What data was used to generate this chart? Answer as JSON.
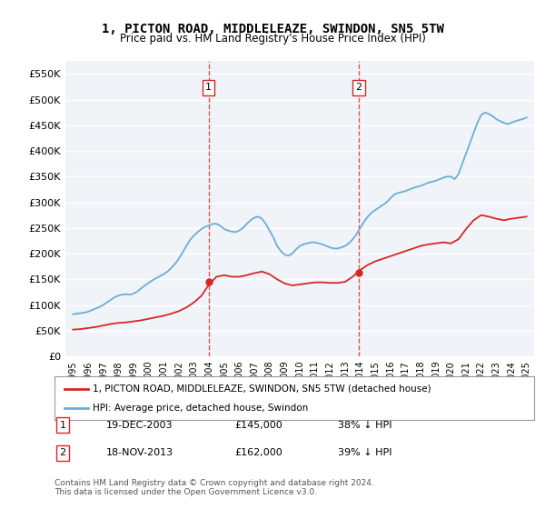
{
  "title": "1, PICTON ROAD, MIDDLELEAZE, SWINDON, SN5 5TW",
  "subtitle": "Price paid vs. HM Land Registry's House Price Index (HPI)",
  "ylabel_ticks": [
    "£0",
    "£50K",
    "£100K",
    "£150K",
    "£200K",
    "£250K",
    "£300K",
    "£350K",
    "£400K",
    "£450K",
    "£500K",
    "£550K"
  ],
  "ytick_values": [
    0,
    50000,
    100000,
    150000,
    200000,
    250000,
    300000,
    350000,
    400000,
    450000,
    500000,
    550000
  ],
  "ylim": [
    0,
    575000
  ],
  "xlim_start": 1994.5,
  "xlim_end": 2025.5,
  "hpi_color": "#6baed6",
  "price_color": "#d62728",
  "vline_color": "#d62728",
  "bg_color": "#f0f4f8",
  "plot_bg": "#f0f4f8",
  "grid_color": "#ffffff",
  "marker1_year": 2003.97,
  "marker2_year": 2013.89,
  "marker1_price": 145000,
  "marker2_price": 162000,
  "marker1_label": "1",
  "marker2_label": "2",
  "marker1_date": "19-DEC-2003",
  "marker2_date": "18-NOV-2013",
  "marker1_pct": "38% ↓ HPI",
  "marker2_pct": "39% ↓ HPI",
  "legend_line1": "1, PICTON ROAD, MIDDLELEAZE, SWINDON, SN5 5TW (detached house)",
  "legend_line2": "HPI: Average price, detached house, Swindon",
  "footer": "Contains HM Land Registry data © Crown copyright and database right 2024.\nThis data is licensed under the Open Government Licence v3.0.",
  "hpi_x": [
    1995,
    1995.25,
    1995.5,
    1995.75,
    1996,
    1996.25,
    1996.5,
    1996.75,
    1997,
    1997.25,
    1997.5,
    1997.75,
    1998,
    1998.25,
    1998.5,
    1998.75,
    1999,
    1999.25,
    1999.5,
    1999.75,
    2000,
    2000.25,
    2000.5,
    2000.75,
    2001,
    2001.25,
    2001.5,
    2001.75,
    2002,
    2002.25,
    2002.5,
    2002.75,
    2003,
    2003.25,
    2003.5,
    2003.75,
    2004,
    2004.25,
    2004.5,
    2004.75,
    2005,
    2005.25,
    2005.5,
    2005.75,
    2006,
    2006.25,
    2006.5,
    2006.75,
    2007,
    2007.25,
    2007.5,
    2007.75,
    2008,
    2008.25,
    2008.5,
    2008.75,
    2009,
    2009.25,
    2009.5,
    2009.75,
    2010,
    2010.25,
    2010.5,
    2010.75,
    2011,
    2011.25,
    2011.5,
    2011.75,
    2012,
    2012.25,
    2012.5,
    2012.75,
    2013,
    2013.25,
    2013.5,
    2013.75,
    2014,
    2014.25,
    2014.5,
    2014.75,
    2015,
    2015.25,
    2015.5,
    2015.75,
    2016,
    2016.25,
    2016.5,
    2016.75,
    2017,
    2017.25,
    2017.5,
    2017.75,
    2018,
    2018.25,
    2018.5,
    2018.75,
    2019,
    2019.25,
    2019.5,
    2019.75,
    2020,
    2020.25,
    2020.5,
    2020.75,
    2021,
    2021.25,
    2021.5,
    2021.75,
    2022,
    2022.25,
    2022.5,
    2022.75,
    2023,
    2023.25,
    2023.5,
    2023.75,
    2024,
    2024.25,
    2024.5,
    2024.75,
    2025
  ],
  "hpi_y": [
    82000,
    83000,
    84000,
    85000,
    87000,
    90000,
    93000,
    96000,
    100000,
    105000,
    110000,
    115000,
    118000,
    120000,
    121000,
    120000,
    122000,
    126000,
    132000,
    138000,
    143000,
    148000,
    152000,
    156000,
    160000,
    165000,
    172000,
    180000,
    190000,
    202000,
    215000,
    227000,
    235000,
    242000,
    248000,
    252000,
    255000,
    258000,
    258000,
    254000,
    248000,
    245000,
    243000,
    242000,
    245000,
    250000,
    258000,
    265000,
    270000,
    272000,
    268000,
    258000,
    245000,
    232000,
    215000,
    205000,
    198000,
    196000,
    200000,
    208000,
    215000,
    218000,
    220000,
    222000,
    222000,
    220000,
    218000,
    215000,
    212000,
    210000,
    210000,
    212000,
    215000,
    220000,
    228000,
    238000,
    250000,
    262000,
    272000,
    280000,
    285000,
    290000,
    295000,
    300000,
    308000,
    315000,
    318000,
    320000,
    322000,
    325000,
    328000,
    330000,
    332000,
    335000,
    338000,
    340000,
    342000,
    345000,
    348000,
    350000,
    350000,
    345000,
    355000,
    375000,
    395000,
    415000,
    435000,
    455000,
    470000,
    475000,
    472000,
    468000,
    462000,
    458000,
    455000,
    452000,
    455000,
    458000,
    460000,
    462000,
    465000
  ],
  "price_x": [
    1995,
    1995.5,
    1996,
    1996.5,
    1997,
    1997.5,
    1998,
    1998.5,
    1999,
    1999.5,
    2000,
    2000.5,
    2001,
    2001.5,
    2002,
    2002.5,
    2003,
    2003.5,
    2004,
    2004.5,
    2005,
    2005.5,
    2006,
    2006.5,
    2007,
    2007.5,
    2008,
    2008.5,
    2009,
    2009.5,
    2010,
    2010.5,
    2011,
    2011.5,
    2012,
    2012.5,
    2013,
    2013.5,
    2014,
    2014.5,
    2015,
    2015.5,
    2016,
    2016.5,
    2017,
    2017.5,
    2018,
    2018.5,
    2019,
    2019.5,
    2020,
    2020.5,
    2021,
    2021.5,
    2022,
    2022.5,
    2023,
    2023.5,
    2024,
    2024.5,
    2025
  ],
  "price_y": [
    52000,
    53000,
    55000,
    57000,
    60000,
    63000,
    65000,
    66000,
    68000,
    70000,
    73000,
    76000,
    79000,
    83000,
    88000,
    95000,
    105000,
    118000,
    140000,
    155000,
    158000,
    155000,
    155000,
    158000,
    162000,
    165000,
    160000,
    150000,
    142000,
    138000,
    140000,
    142000,
    144000,
    144000,
    143000,
    143000,
    145000,
    155000,
    168000,
    178000,
    185000,
    190000,
    195000,
    200000,
    205000,
    210000,
    215000,
    218000,
    220000,
    222000,
    220000,
    228000,
    248000,
    265000,
    275000,
    272000,
    268000,
    265000,
    268000,
    270000,
    272000
  ]
}
